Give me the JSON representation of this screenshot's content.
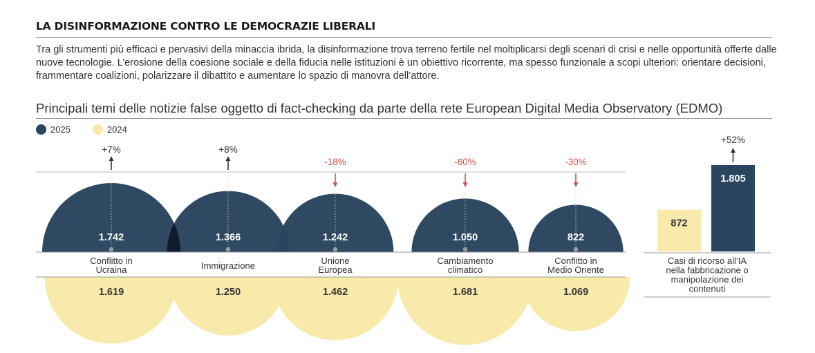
{
  "header": {
    "title": "LA DISINFORMAZIONE CONTRO LE DEMOCRAZIE LIBERALI",
    "intro": "Tra gli strumenti più efficaci e pervasivi della minaccia ibrida, la disinformazione trova terreno fertile nel moltiplicarsi degli scenari di crisi e nelle opportunità offerte dalle nuove tecnologie. L’erosione della coesione sociale e della fiducia nelle istituzioni è un obiettivo ricorrente, ma spesso funzionale a scopi ulteriori: orientare decisioni, frammentare coalizioni, polarizzare il dibattito e aumentare lo spazio di manovra dell’attore."
  },
  "colors": {
    "series_2025": "#2b4560",
    "series_2024": "#f8eaab",
    "increase": "#333333",
    "decrease": "#d0524a"
  },
  "chart_data": [
    {
      "type": "bubble",
      "title": "Principali temi delle notizie false oggetto di fact-checking da parte della rete European Digital Media Observatory (EDMO)",
      "legend": [
        "2025",
        "2024"
      ],
      "legend_position": "top-left",
      "categories": [
        [
          "Conflitto in",
          "Ucraina"
        ],
        [
          "Immigrazione"
        ],
        [
          "Unione",
          "Europea"
        ],
        [
          "Cambiamento",
          "climatico"
        ],
        [
          "Conflitto in",
          "Medio Oriente"
        ]
      ],
      "series": [
        {
          "name": "2025",
          "values": [
            1742,
            1366,
            1242,
            1050,
            822
          ],
          "labels": [
            "1.742",
            "1.366",
            "1.242",
            "1.050",
            "822"
          ]
        },
        {
          "name": "2024",
          "values": [
            1619,
            1250,
            1462,
            1681,
            1069
          ],
          "labels": [
            "1.619",
            "1.250",
            "1.462",
            "1.681",
            "1.069"
          ]
        }
      ],
      "changes": [
        "+7%",
        "+8%",
        "-18%",
        "-60%",
        "-30%"
      ]
    },
    {
      "type": "bar",
      "categories": [
        "2024",
        "2025"
      ],
      "values": [
        872,
        1805
      ],
      "labels": [
        "872",
        "1.805"
      ],
      "change": "+52%",
      "caption": [
        "Casi di ricorso all’IA",
        "nella fabbricazione o",
        "manipolazione dei",
        "contenuti"
      ]
    }
  ]
}
